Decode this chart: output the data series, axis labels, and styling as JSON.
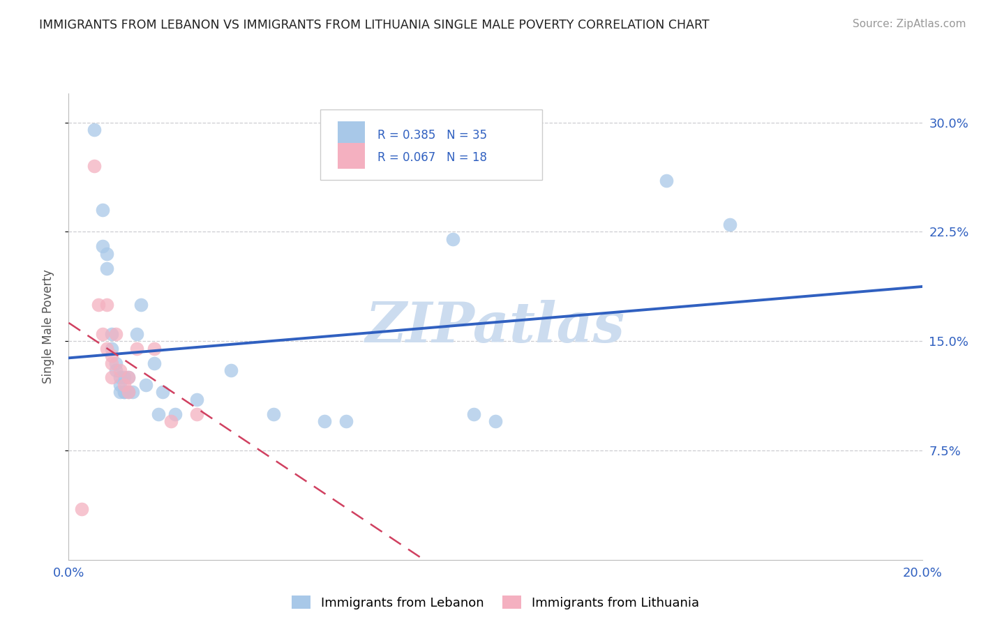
{
  "title": "IMMIGRANTS FROM LEBANON VS IMMIGRANTS FROM LITHUANIA SINGLE MALE POVERTY CORRELATION CHART",
  "source": "Source: ZipAtlas.com",
  "ylabel": "Single Male Poverty",
  "xlim": [
    0.0,
    0.2
  ],
  "ylim": [
    0.0,
    0.32
  ],
  "yticks": [
    0.075,
    0.15,
    0.225,
    0.3
  ],
  "ytick_labels": [
    "7.5%",
    "15.0%",
    "22.5%",
    "30.0%"
  ],
  "xticks": [
    0.0,
    0.05,
    0.1,
    0.15,
    0.2
  ],
  "xtick_labels": [
    "0.0%",
    "",
    "",
    "",
    "20.0%"
  ],
  "lebanon_R": 0.385,
  "lebanon_N": 35,
  "lithuania_R": 0.067,
  "lithuania_N": 18,
  "lebanon_color": "#a8c8e8",
  "lithuania_color": "#f4b0c0",
  "lebanon_line_color": "#3060c0",
  "lithuania_line_color": "#d04060",
  "background_color": "#ffffff",
  "grid_color": "#c8c8cc",
  "watermark_color": "#ccdcef",
  "lebanon_x": [
    0.006,
    0.008,
    0.008,
    0.009,
    0.009,
    0.01,
    0.01,
    0.011,
    0.011,
    0.012,
    0.012,
    0.012,
    0.013,
    0.013,
    0.013,
    0.014,
    0.014,
    0.015,
    0.016,
    0.017,
    0.018,
    0.02,
    0.021,
    0.022,
    0.025,
    0.03,
    0.038,
    0.048,
    0.06,
    0.065,
    0.09,
    0.095,
    0.1,
    0.14,
    0.155
  ],
  "lebanon_y": [
    0.295,
    0.24,
    0.215,
    0.21,
    0.2,
    0.155,
    0.145,
    0.135,
    0.13,
    0.125,
    0.12,
    0.115,
    0.125,
    0.115,
    0.115,
    0.125,
    0.115,
    0.115,
    0.155,
    0.175,
    0.12,
    0.135,
    0.1,
    0.115,
    0.1,
    0.11,
    0.13,
    0.1,
    0.095,
    0.095,
    0.22,
    0.1,
    0.095,
    0.26,
    0.23
  ],
  "lithuania_x": [
    0.003,
    0.006,
    0.007,
    0.008,
    0.009,
    0.009,
    0.01,
    0.01,
    0.01,
    0.011,
    0.012,
    0.013,
    0.014,
    0.014,
    0.016,
    0.02,
    0.024,
    0.03
  ],
  "lithuania_y": [
    0.035,
    0.27,
    0.175,
    0.155,
    0.145,
    0.175,
    0.14,
    0.135,
    0.125,
    0.155,
    0.13,
    0.12,
    0.125,
    0.115,
    0.145,
    0.145,
    0.095,
    0.1
  ]
}
